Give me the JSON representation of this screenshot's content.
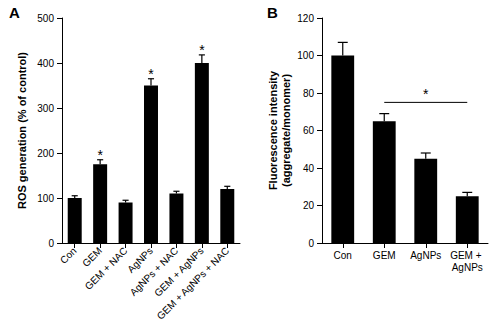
{
  "chart_data": [
    {
      "type": "bar",
      "title": "A",
      "y_label": "ROS generation (% of control)",
      "categories": [
        "Con",
        "GEM",
        "GEM + NAC",
        "AgNPs",
        "AgNPs + NAC",
        "GEM + AgNPs",
        "GEM + AgNPs + NAC"
      ],
      "values": [
        100,
        175,
        90,
        350,
        110,
        400,
        120
      ],
      "errors": [
        5,
        10,
        5,
        15,
        5,
        18,
        6
      ],
      "color": "#000000",
      "ylim": [
        0,
        500
      ],
      "yticks": [
        0,
        100,
        200,
        300,
        400,
        500
      ],
      "grid": false,
      "annotations": [
        {
          "category": "GEM",
          "text": "*"
        },
        {
          "category": "AgNPs",
          "text": "*"
        },
        {
          "category": "GEM + AgNPs",
          "text": "*"
        }
      ]
    },
    {
      "type": "bar",
      "title": "B",
      "y_label": "Fluorescence intensity\n(aggregate/monomer)",
      "categories": [
        "Con",
        "GEM",
        "AgNPs",
        "GEM + AgNPs"
      ],
      "values": [
        100,
        65,
        45,
        25
      ],
      "errors": [
        7,
        4,
        3,
        2
      ],
      "color": "#000000",
      "ylim": [
        0,
        120
      ],
      "yticks": [
        0,
        20,
        40,
        60,
        80,
        100,
        120
      ],
      "grid": false,
      "annotations": [
        {
          "from": "GEM",
          "to": "GEM + AgNPs",
          "y": 75,
          "text": "*"
        }
      ]
    }
  ]
}
